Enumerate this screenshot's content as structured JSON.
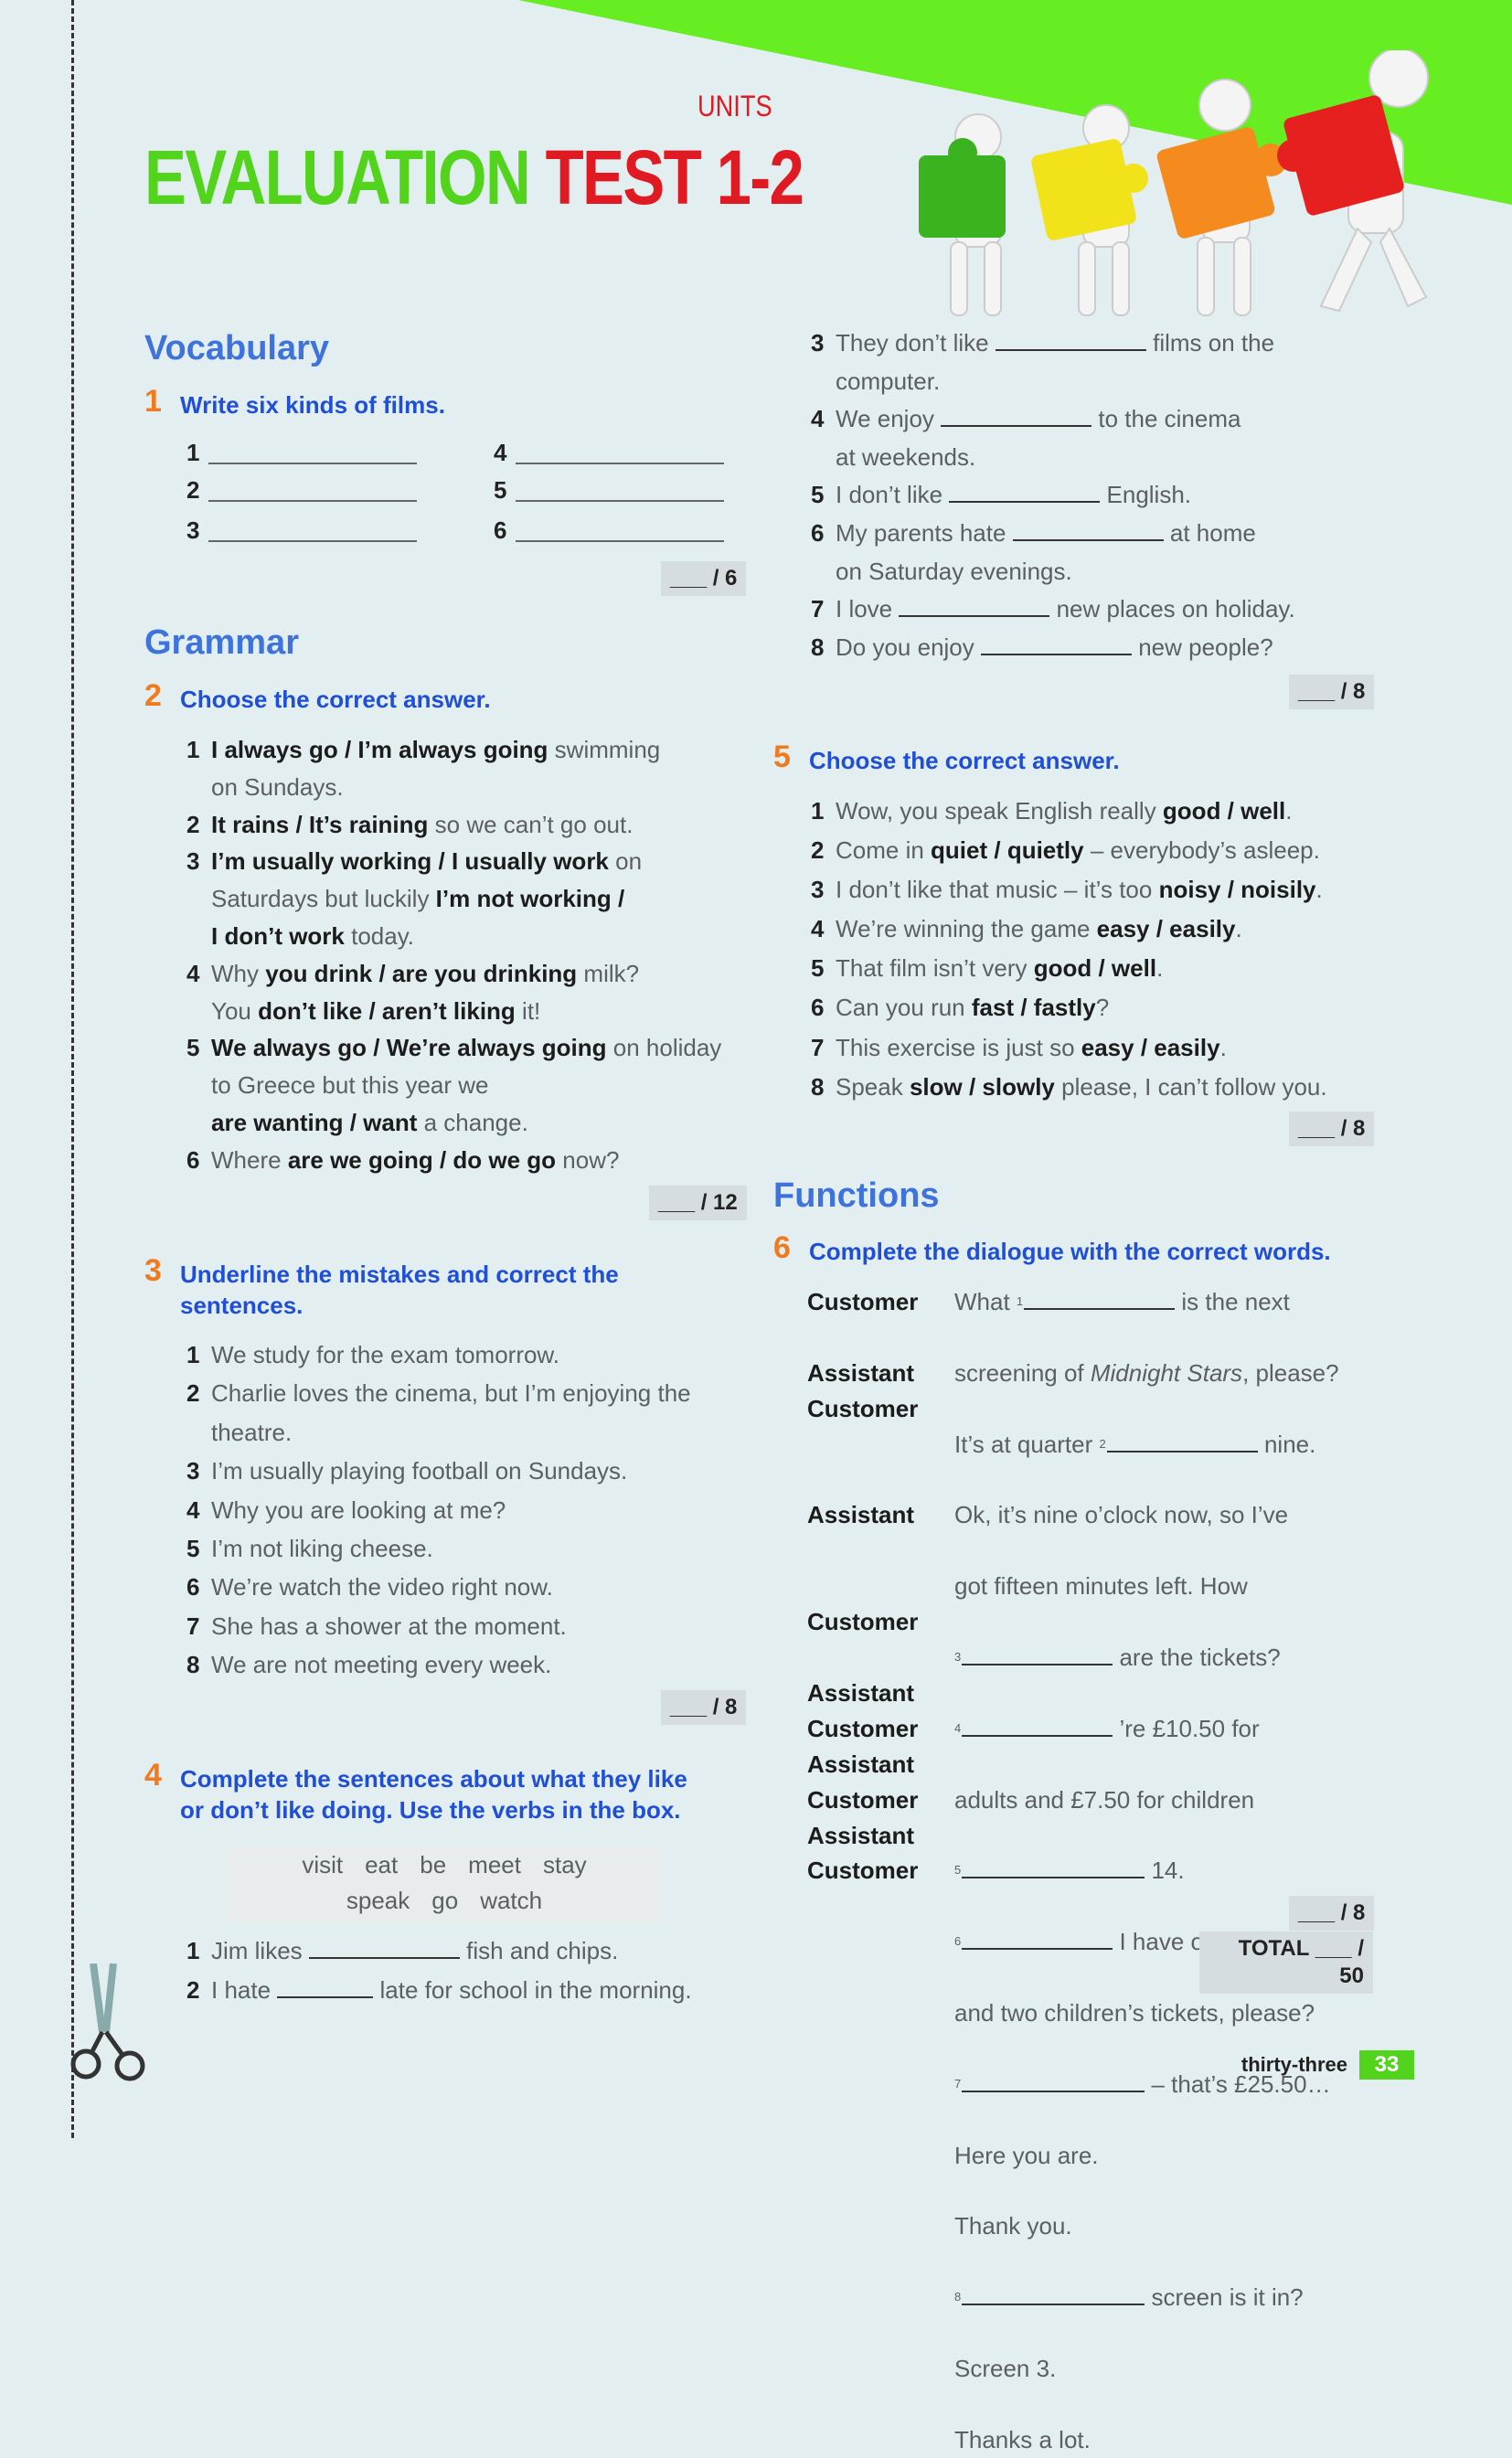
{
  "header": {
    "units_label": "UNITS",
    "title_green": "EVALUATION",
    "title_red": "TEST 1-2",
    "colors": {
      "green": "#52d41c",
      "red": "#e01a22",
      "accent_orange": "#f07a1e",
      "heading_blue": "#3f73dc"
    }
  },
  "vocabulary": {
    "heading": "Vocabulary"
  },
  "ex1": {
    "num": "1",
    "instruction": "Write six kinds of films.",
    "items": [
      "1",
      "2",
      "3",
      "4",
      "5",
      "6"
    ],
    "score": "___ / 6"
  },
  "grammar": {
    "heading": "Grammar"
  },
  "ex2": {
    "num": "2",
    "instruction": "Choose the correct answer.",
    "score": "___ / 12",
    "items": [
      {
        "n": "1",
        "lines": [
          [
            {
              "b": "I always go / I’m always going"
            },
            {
              "t": " swimming"
            }
          ],
          [
            {
              "t": "on Sundays."
            }
          ]
        ]
      },
      {
        "n": "2",
        "lines": [
          [
            {
              "b": "It rains / It’s raining"
            },
            {
              "t": " so we can’t go out."
            }
          ]
        ]
      },
      {
        "n": "3",
        "lines": [
          [
            {
              "b": "I’m usually working / I usually work"
            },
            {
              "t": " on"
            }
          ],
          [
            {
              "t": "Saturdays but luckily "
            },
            {
              "b": "I’m not working /"
            }
          ],
          [
            {
              "b": "I don’t work"
            },
            {
              "t": " today."
            }
          ]
        ]
      },
      {
        "n": "4",
        "lines": [
          [
            {
              "t": "Why "
            },
            {
              "b": "you drink / are you drinking"
            },
            {
              "t": " milk?"
            }
          ],
          [
            {
              "t": "You "
            },
            {
              "b": "don’t like / aren’t liking"
            },
            {
              "t": " it!"
            }
          ]
        ]
      },
      {
        "n": "5",
        "lines": [
          [
            {
              "b": "We always go / We’re always going"
            },
            {
              "t": " on holiday"
            }
          ],
          [
            {
              "t": "to Greece but this year we"
            }
          ],
          [
            {
              "b": "are wanting / want"
            },
            {
              "t": " a change."
            }
          ]
        ]
      },
      {
        "n": "6",
        "lines": [
          [
            {
              "t": "Where "
            },
            {
              "b": "are we going / do we go"
            },
            {
              "t": " now?"
            }
          ]
        ]
      }
    ]
  },
  "ex3": {
    "num": "3",
    "instruction_lines": [
      "Underline the mistakes and correct the",
      "sentences."
    ],
    "score": "___ / 8",
    "items": [
      {
        "n": "1",
        "lines": [
          [
            {
              "t": "We study for the exam tomorrow."
            }
          ]
        ]
      },
      {
        "n": "2",
        "lines": [
          [
            {
              "t": "Charlie loves the cinema, but I’m enjoying the"
            }
          ],
          [
            {
              "t": "theatre."
            }
          ]
        ]
      },
      {
        "n": "3",
        "lines": [
          [
            {
              "t": "I’m usually playing football on Sundays."
            }
          ]
        ]
      },
      {
        "n": "4",
        "lines": [
          [
            {
              "t": "Why you are looking at me?"
            }
          ]
        ]
      },
      {
        "n": "5",
        "lines": [
          [
            {
              "t": "I’m not liking cheese."
            }
          ]
        ]
      },
      {
        "n": "6",
        "lines": [
          [
            {
              "t": "We’re watch the video right now."
            }
          ]
        ]
      },
      {
        "n": "7",
        "lines": [
          [
            {
              "t": "She has a shower at the moment."
            }
          ]
        ]
      },
      {
        "n": "8",
        "lines": [
          [
            {
              "t": "We are not meeting every week."
            }
          ]
        ]
      }
    ]
  },
  "ex4": {
    "num": "4",
    "instruction_lines": [
      "Complete the sentences about what they like",
      "or don’t like doing. Use the verbs in the box."
    ],
    "score": "___ / 8",
    "word_box": [
      [
        "visit",
        "eat",
        "be",
        "meet",
        "stay"
      ],
      [
        "speak",
        "go",
        "watch"
      ]
    ],
    "items_left": [
      {
        "n": "1",
        "lines": [
          [
            {
              "t": "Jim likes "
            },
            {
              "gap": "m"
            },
            {
              "t": " fish and chips."
            }
          ]
        ]
      },
      {
        "n": "2",
        "lines": [
          [
            {
              "t": "I hate "
            },
            {
              "gap": "s"
            },
            {
              "t": " late for school in the morning."
            }
          ]
        ]
      }
    ],
    "items_right": [
      {
        "n": "3",
        "lines": [
          [
            {
              "t": "They don’t like "
            },
            {
              "gap": "m"
            },
            {
              "t": " films on the"
            }
          ],
          [
            {
              "t": "computer."
            }
          ]
        ]
      },
      {
        "n": "4",
        "lines": [
          [
            {
              "t": "We enjoy "
            },
            {
              "gap": "m"
            },
            {
              "t": " to the cinema"
            }
          ],
          [
            {
              "t": "at weekends."
            }
          ]
        ]
      },
      {
        "n": "5",
        "lines": [
          [
            {
              "t": "I don’t like "
            },
            {
              "gap": "m"
            },
            {
              "t": " English."
            }
          ]
        ]
      },
      {
        "n": "6",
        "lines": [
          [
            {
              "t": "My parents hate "
            },
            {
              "gap": "m"
            },
            {
              "t": " at home"
            }
          ],
          [
            {
              "t": "on Saturday evenings."
            }
          ]
        ]
      },
      {
        "n": "7",
        "lines": [
          [
            {
              "t": "I love "
            },
            {
              "gap": "m"
            },
            {
              "t": " new places on holiday."
            }
          ]
        ]
      },
      {
        "n": "8",
        "lines": [
          [
            {
              "t": "Do you enjoy "
            },
            {
              "gap": "m"
            },
            {
              "t": " new people?"
            }
          ]
        ]
      }
    ]
  },
  "ex5": {
    "num": "5",
    "instruction": "Choose the correct answer.",
    "score": "___ / 8",
    "items": [
      {
        "n": "1",
        "lines": [
          [
            {
              "t": "Wow, you speak English really "
            },
            {
              "b": "good / well"
            },
            {
              "t": "."
            }
          ]
        ]
      },
      {
        "n": "2",
        "lines": [
          [
            {
              "t": "Come in "
            },
            {
              "b": "quiet / quietly"
            },
            {
              "t": " – everybody’s asleep."
            }
          ]
        ]
      },
      {
        "n": "3",
        "lines": [
          [
            {
              "t": "I don’t like that music – it’s too "
            },
            {
              "b": "noisy / noisily"
            },
            {
              "t": "."
            }
          ]
        ]
      },
      {
        "n": "4",
        "lines": [
          [
            {
              "t": "We’re winning the game "
            },
            {
              "b": "easy / easily"
            },
            {
              "t": "."
            }
          ]
        ]
      },
      {
        "n": "5",
        "lines": [
          [
            {
              "t": "That film isn’t very "
            },
            {
              "b": "good / well"
            },
            {
              "t": "."
            }
          ]
        ]
      },
      {
        "n": "6",
        "lines": [
          [
            {
              "t": "Can you run "
            },
            {
              "b": "fast / fastly"
            },
            {
              "t": "?"
            }
          ]
        ]
      },
      {
        "n": "7",
        "lines": [
          [
            {
              "t": "This exercise is just so "
            },
            {
              "b": "easy / easily"
            },
            {
              "t": "."
            }
          ]
        ]
      },
      {
        "n": "8",
        "lines": [
          [
            {
              "t": "Speak "
            },
            {
              "b": "slow / slowly"
            },
            {
              "t": " please, I can’t follow you."
            }
          ]
        ]
      }
    ]
  },
  "functions": {
    "heading": "Functions"
  },
  "ex6": {
    "num": "6",
    "instruction": "Complete the dialogue with the correct words.",
    "score": "___ / 8",
    "total": "TOTAL ___ / 50",
    "dialogue": [
      {
        "speaker": "Customer",
        "lines": [
          [
            {
              "t": "What "
            },
            {
              "sup": "1"
            },
            {
              "gap": "m"
            },
            {
              "t": " is the next"
            }
          ],
          [
            {
              "t": "screening of "
            },
            {
              "i": "Midnight Stars"
            },
            {
              "t": ", please?"
            }
          ]
        ]
      },
      {
        "speaker": "Assistant",
        "lines": [
          [
            {
              "t": "It’s at quarter "
            },
            {
              "sup": "2"
            },
            {
              "gap": "m"
            },
            {
              "t": " nine."
            }
          ]
        ]
      },
      {
        "speaker": "Customer",
        "lines": [
          [
            {
              "t": "Ok, it’s nine o’clock now, so I’ve"
            }
          ],
          [
            {
              "t": "got fifteen minutes left. How"
            }
          ],
          [
            {
              "sup": "3"
            },
            {
              "gap": "m"
            },
            {
              "t": " are the tickets?"
            }
          ]
        ]
      },
      {
        "speaker": "Assistant",
        "lines": [
          [
            {
              "sup": "4"
            },
            {
              "gap": "m"
            },
            {
              "t": " ’re £10.50 for"
            }
          ],
          [
            {
              "t": "adults and £7.50 for children"
            }
          ],
          [
            {
              "sup": "5"
            },
            {
              "gap": "l"
            },
            {
              "t": " 14."
            }
          ]
        ]
      },
      {
        "speaker": "Customer",
        "lines": [
          [
            {
              "sup": "6"
            },
            {
              "gap": "m"
            },
            {
              "t": " I have one adult ticket"
            }
          ],
          [
            {
              "t": "and two children’s tickets, please?"
            }
          ]
        ]
      },
      {
        "speaker": "Assistant",
        "lines": [
          [
            {
              "sup": "7"
            },
            {
              "gap": "l"
            },
            {
              "t": " – that’s £25.50…"
            }
          ]
        ]
      },
      {
        "speaker": "Customer",
        "lines": [
          [
            {
              "t": "Here you are."
            }
          ]
        ]
      },
      {
        "speaker": "Assistant",
        "lines": [
          [
            {
              "t": "Thank you."
            }
          ]
        ]
      },
      {
        "speaker": "Customer",
        "lines": [
          [
            {
              "sup": "8"
            },
            {
              "gap": "l"
            },
            {
              "t": " screen is it in?"
            }
          ]
        ]
      },
      {
        "speaker": "Assistant",
        "lines": [
          [
            {
              "t": "Screen 3."
            }
          ]
        ]
      },
      {
        "speaker": "Customer",
        "lines": [
          [
            {
              "t": "Thanks a lot."
            }
          ]
        ]
      }
    ]
  },
  "footer": {
    "page_word": "thirty-three",
    "page_num": "33"
  },
  "icons": {
    "cut_line": "scissors-icon",
    "illustration": "puzzle-figures"
  }
}
